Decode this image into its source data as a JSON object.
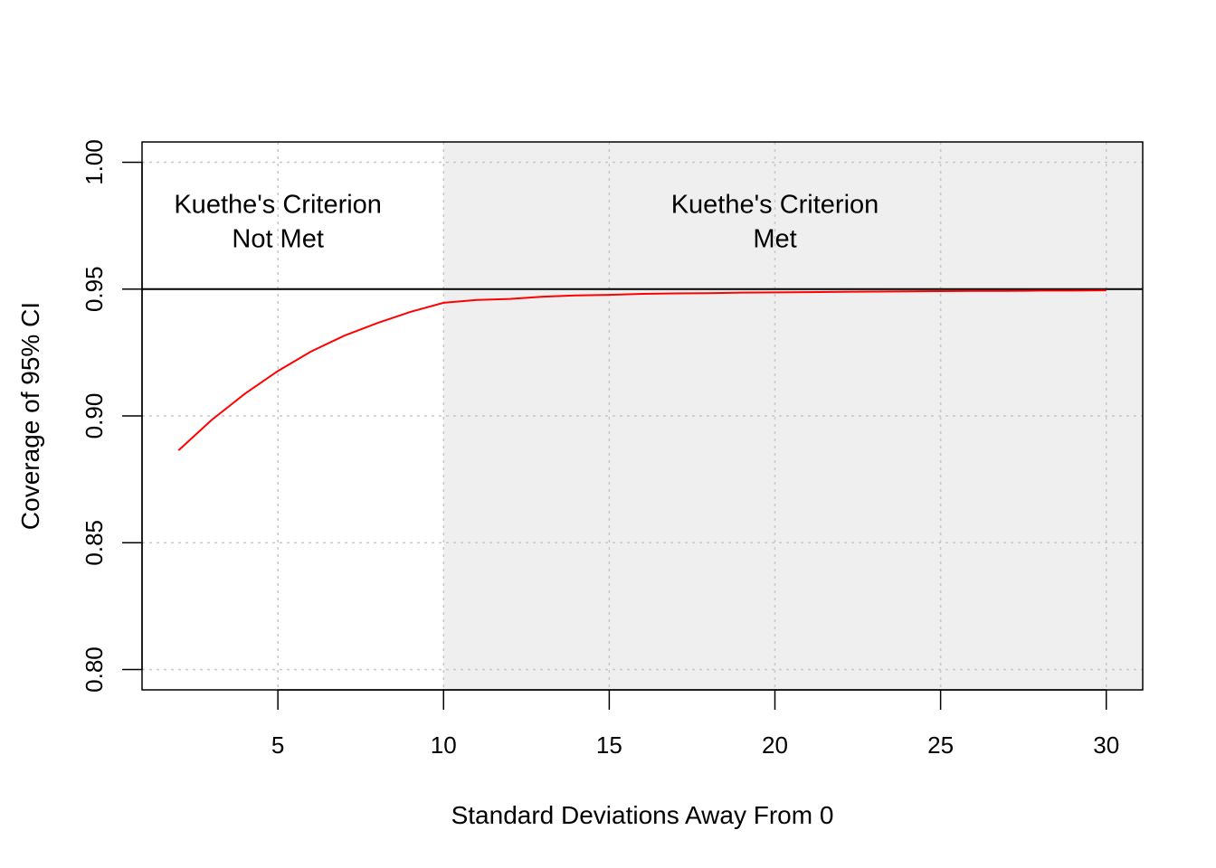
{
  "chart_data": {
    "type": "line",
    "title": "",
    "xlabel": "Standard Deviations Away From 0",
    "ylabel": "Coverage of 95% CI",
    "xlim": [
      0.9,
      31.1
    ],
    "ylim": [
      0.792,
      1.008
    ],
    "x_ticks": [
      5,
      10,
      15,
      20,
      25,
      30
    ],
    "x_tick_labels": [
      "5",
      "10",
      "15",
      "20",
      "25",
      "30"
    ],
    "y_ticks": [
      0.8,
      0.85,
      0.9,
      0.95,
      1.0
    ],
    "y_tick_labels": [
      "0.80",
      "0.85",
      "0.90",
      "0.95",
      "1.00"
    ],
    "grid": true,
    "reference_line": 0.95,
    "shaded_region": {
      "x_from": 10,
      "color": "#efefef"
    },
    "annotations": [
      {
        "lines": [
          "Kuethe's Criterion",
          "Not Met"
        ],
        "x": 5,
        "y": 0.975
      },
      {
        "lines": [
          "Kuethe's Criterion",
          "Met"
        ],
        "x": 20,
        "y": 0.975
      }
    ],
    "series": [
      {
        "color": "#ff0000",
        "x": [
          2,
          3,
          4,
          5,
          6,
          7,
          8,
          9,
          10,
          11,
          12,
          13,
          14,
          15,
          16,
          17,
          18,
          19,
          20,
          21,
          22,
          23,
          24,
          25,
          26,
          27,
          28,
          29,
          30
        ],
        "y": [
          0.8864,
          0.8984,
          0.9087,
          0.9177,
          0.9254,
          0.9316,
          0.9366,
          0.941,
          0.9446,
          0.9457,
          0.9461,
          0.947,
          0.9475,
          0.9477,
          0.9481,
          0.9483,
          0.9484,
          0.9486,
          0.9487,
          0.9488,
          0.9489,
          0.949,
          0.9491,
          0.9492,
          0.9493,
          0.9493,
          0.9494,
          0.9494,
          0.9495
        ]
      }
    ]
  }
}
